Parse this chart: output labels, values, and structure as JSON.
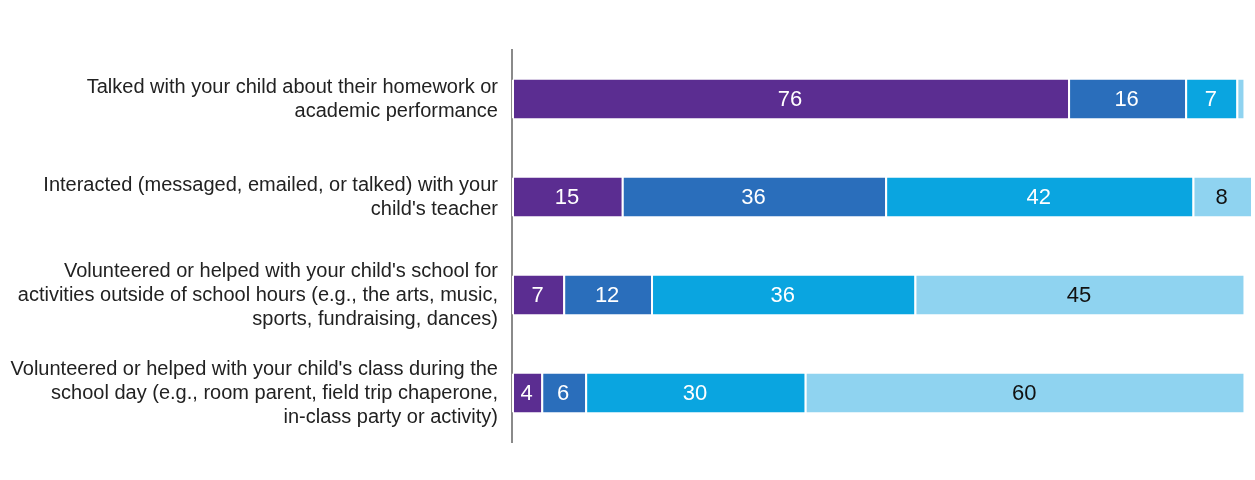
{
  "chart_data": {
    "type": "bar",
    "orientation": "horizontal",
    "stacked": true,
    "categories": [
      "Talked with your child about their homework or academic performance",
      "Interacted (messaged, emailed, or talked) with your child's teacher",
      "Volunteered or helped with your child's school for activities outside of school hours (e.g., the arts, music, sports, fundraising, dances)",
      "Volunteered or helped with your child's class during the school day (e.g., room parent, field trip chaperone, in-class party or activity)"
    ],
    "series": [
      {
        "color": "#5b2d91",
        "values": [
          76,
          15,
          7,
          4
        ],
        "value_labels": [
          "76",
          "15",
          "7",
          "4"
        ]
      },
      {
        "color": "#2a6ebb",
        "values": [
          16,
          36,
          12,
          6
        ],
        "value_labels": [
          "16",
          "36",
          "12",
          "6"
        ]
      },
      {
        "color": "#0aa5e0",
        "values": [
          7,
          42,
          36,
          30
        ],
        "value_labels": [
          "7",
          "42",
          "36",
          "30"
        ]
      },
      {
        "color": "#8fd3f0",
        "values": [
          1,
          8,
          45,
          60
        ],
        "value_labels": [
          null,
          "8",
          "45",
          "60"
        ]
      }
    ],
    "xlim": [
      0,
      101
    ],
    "tick_labels": "y",
    "grid": false,
    "legend": false
  }
}
